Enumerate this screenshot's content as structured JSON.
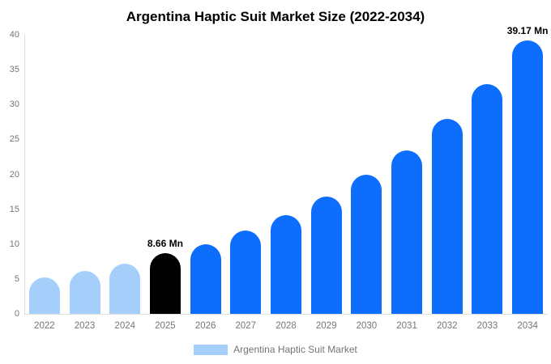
{
  "title": "Argentina Haptic Suit Market Size (2022-2034)",
  "chart_data": {
    "type": "bar",
    "title": "Argentina Haptic Suit Market Size (2022-2034)",
    "categories": [
      "2022",
      "2023",
      "2024",
      "2025",
      "2026",
      "2027",
      "2028",
      "2029",
      "2030",
      "2031",
      "2032",
      "2033",
      "2034"
    ],
    "values": [
      5.2,
      6.1,
      7.2,
      8.66,
      10.0,
      11.9,
      14.1,
      16.8,
      19.9,
      23.4,
      27.9,
      32.9,
      39.17
    ],
    "unit": "Mn",
    "value_labels": [
      {
        "category": "2025",
        "text": "8.66 Mn"
      },
      {
        "category": "2034",
        "text": "39.17 Mn"
      }
    ],
    "xlabel": "",
    "ylabel": "",
    "ylim": [
      0,
      40
    ],
    "yticks": [
      0,
      5,
      10,
      15,
      20,
      25,
      30,
      35,
      40
    ],
    "grid": false,
    "legend": {
      "label": "Argentina Haptic Suit Market",
      "position": "bottom"
    },
    "bar_segments": [
      "historical",
      "historical",
      "historical",
      "base_year",
      "forecast",
      "forecast",
      "forecast",
      "forecast",
      "forecast",
      "forecast",
      "forecast",
      "forecast",
      "forecast"
    ],
    "colors": {
      "historical": "#A6CEFB",
      "base_year": "#000000",
      "forecast": "#0D6EFD",
      "axis_line": "#DDDDDD",
      "tick_text": "#757575",
      "label_text": "#000000"
    }
  }
}
